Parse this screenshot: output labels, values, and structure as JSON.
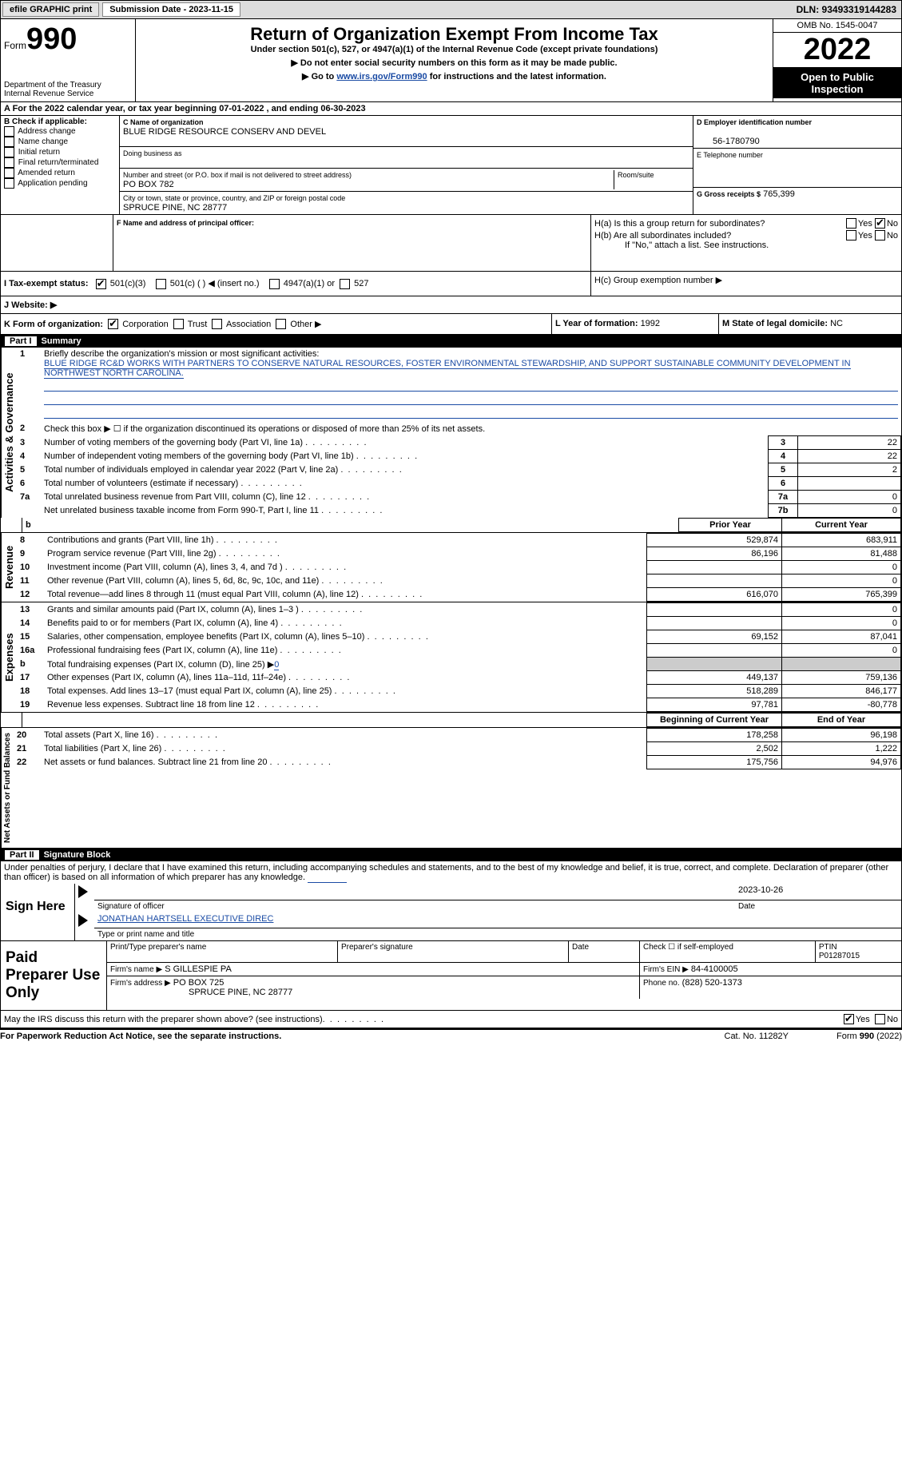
{
  "topbar": {
    "efile": "efile GRAPHIC print",
    "submission": "Submission Date - 2023-11-15",
    "dln": "DLN: 93493319144283"
  },
  "header": {
    "form_prefix": "Form",
    "form_no": "990",
    "dept1": "Department of the Treasury",
    "dept2": "Internal Revenue Service",
    "title": "Return of Organization Exempt From Income Tax",
    "sub1": "Under section 501(c), 527, or 4947(a)(1) of the Internal Revenue Code (except private foundations)",
    "sub2": "▶ Do not enter social security numbers on this form as it may be made public.",
    "sub3_pre": "▶ Go to ",
    "sub3_link": "www.irs.gov/Form990",
    "sub3_post": " for instructions and the latest information.",
    "omb": "OMB No. 1545-0047",
    "year": "2022",
    "open": "Open to Public Inspection"
  },
  "A": {
    "line": "A For the 2022 calendar year, or tax year beginning 07-01-2022    , and ending 06-30-2023"
  },
  "B": {
    "title": "B Check if applicable:",
    "opts": [
      "Address change",
      "Name change",
      "Initial return",
      "Final return/terminated",
      "Amended return",
      "Application pending"
    ]
  },
  "C": {
    "label": "C Name of organization",
    "name": "BLUE RIDGE RESOURCE CONSERV AND DEVEL",
    "dba_label": "Doing business as",
    "addr_label": "Number and street (or P.O. box if mail is not delivered to street address)",
    "room_label": "Room/suite",
    "addr": "PO BOX 782",
    "city_label": "City or town, state or province, country, and ZIP or foreign postal code",
    "city": "SPRUCE PINE, NC  28777"
  },
  "D": {
    "label": "D Employer identification number",
    "val": "56-1780790"
  },
  "E": {
    "label": "E Telephone number"
  },
  "G": {
    "label": "G Gross receipts $",
    "val": "765,399"
  },
  "F": {
    "label": "F Name and address of principal officer:"
  },
  "H": {
    "a": "H(a)  Is this a group return for subordinates?",
    "b": "H(b)  Are all subordinates included?",
    "b_note": "If \"No,\" attach a list. See instructions.",
    "c": "H(c)  Group exemption number ▶",
    "yes": "Yes",
    "no": "No"
  },
  "I": {
    "label": "I  Tax-exempt status:",
    "o1": "501(c)(3)",
    "o2": "501(c) (  ) ◀ (insert no.)",
    "o3": "4947(a)(1) or",
    "o4": "527"
  },
  "J": {
    "label": "J  Website: ▶"
  },
  "K": {
    "label": "K Form of organization:",
    "o1": "Corporation",
    "o2": "Trust",
    "o3": "Association",
    "o4": "Other ▶"
  },
  "L": {
    "label": "L Year of formation: ",
    "val": "1992"
  },
  "M": {
    "label": "M State of legal domicile: ",
    "val": "NC"
  },
  "part1": {
    "title": "Part I",
    "heading": "Summary",
    "l1_label": "Briefly describe the organization's mission or most significant activities:",
    "l1_text": "BLUE RIDGE RC&D WORKS WITH PARTNERS TO CONSERVE NATURAL RESOURCES, FOSTER ENVIRONMENTAL STEWARDSHIP, AND SUPPORT SUSTAINABLE COMMUNITY DEVELOPMENT IN NORTHWEST NORTH CAROLINA.",
    "l2": "Check this box ▶ ☐ if the organization discontinued its operations or disposed of more than 25% of its net assets.",
    "rows": [
      {
        "n": "3",
        "t": "Number of voting members of the governing body (Part VI, line 1a)",
        "b": "3",
        "v": "22"
      },
      {
        "n": "4",
        "t": "Number of independent voting members of the governing body (Part VI, line 1b)",
        "b": "4",
        "v": "22"
      },
      {
        "n": "5",
        "t": "Total number of individuals employed in calendar year 2022 (Part V, line 2a)",
        "b": "5",
        "v": "2"
      },
      {
        "n": "6",
        "t": "Total number of volunteers (estimate if necessary)",
        "b": "6",
        "v": ""
      },
      {
        "n": "7a",
        "t": "Total unrelated business revenue from Part VIII, column (C), line 12",
        "b": "7a",
        "v": "0"
      },
      {
        "n": "",
        "t": "Net unrelated business taxable income from Form 990-T, Part I, line 11",
        "b": "7b",
        "v": "0"
      }
    ],
    "prior": "Prior Year",
    "current": "Current Year",
    "rev": [
      {
        "n": "8",
        "t": "Contributions and grants (Part VIII, line 1h)",
        "p": "529,874",
        "c": "683,911"
      },
      {
        "n": "9",
        "t": "Program service revenue (Part VIII, line 2g)",
        "p": "86,196",
        "c": "81,488"
      },
      {
        "n": "10",
        "t": "Investment income (Part VIII, column (A), lines 3, 4, and 7d )",
        "p": "",
        "c": "0"
      },
      {
        "n": "11",
        "t": "Other revenue (Part VIII, column (A), lines 5, 6d, 8c, 9c, 10c, and 11e)",
        "p": "",
        "c": "0"
      },
      {
        "n": "12",
        "t": "Total revenue—add lines 8 through 11 (must equal Part VIII, column (A), line 12)",
        "p": "616,070",
        "c": "765,399"
      }
    ],
    "exp": [
      {
        "n": "13",
        "t": "Grants and similar amounts paid (Part IX, column (A), lines 1–3 )",
        "p": "",
        "c": "0"
      },
      {
        "n": "14",
        "t": "Benefits paid to or for members (Part IX, column (A), line 4)",
        "p": "",
        "c": "0"
      },
      {
        "n": "15",
        "t": "Salaries, other compensation, employee benefits (Part IX, column (A), lines 5–10)",
        "p": "69,152",
        "c": "87,041"
      },
      {
        "n": "16a",
        "t": "Professional fundraising fees (Part IX, column (A), line 11e)",
        "p": "",
        "c": "0"
      },
      {
        "n": "b",
        "t": "Total fundraising expenses (Part IX, column (D), line 25) ▶",
        "p": "grey",
        "c": "grey",
        "inline": "0"
      },
      {
        "n": "17",
        "t": "Other expenses (Part IX, column (A), lines 11a–11d, 11f–24e)",
        "p": "449,137",
        "c": "759,136"
      },
      {
        "n": "18",
        "t": "Total expenses. Add lines 13–17 (must equal Part IX, column (A), line 25)",
        "p": "518,289",
        "c": "846,177"
      },
      {
        "n": "19",
        "t": "Revenue less expenses. Subtract line 18 from line 12",
        "p": "97,781",
        "c": "-80,778"
      }
    ],
    "begin": "Beginning of Current Year",
    "end": "End of Year",
    "net": [
      {
        "n": "20",
        "t": "Total assets (Part X, line 16)",
        "p": "178,258",
        "c": "96,198"
      },
      {
        "n": "21",
        "t": "Total liabilities (Part X, line 26)",
        "p": "2,502",
        "c": "1,222"
      },
      {
        "n": "22",
        "t": "Net assets or fund balances. Subtract line 21 from line 20",
        "p": "175,756",
        "c": "94,976"
      }
    ],
    "side_act": "Activities & Governance",
    "side_rev": "Revenue",
    "side_exp": "Expenses",
    "side_net": "Net Assets or Fund Balances"
  },
  "part2": {
    "title": "Part II",
    "heading": "Signature Block",
    "decl": "Under penalties of perjury, I declare that I have examined this return, including accompanying schedules and statements, and to the best of my knowledge and belief, it is true, correct, and complete. Declaration of preparer (other than officer) is based on all information of which preparer has any knowledge.",
    "sign_here": "Sign Here",
    "sig_officer": "Signature of officer",
    "sig_date_val": "2023-10-26",
    "sig_date": "Date",
    "printed_name": "JONATHAN HARTSELL  EXECUTIVE DIREC",
    "printed_label": "Type or print name and title",
    "paid": "Paid Preparer Use Only",
    "pp_name_label": "Print/Type preparer's name",
    "pp_sig_label": "Preparer's signature",
    "pp_date": "Date",
    "pp_check": "Check ☐ if self-employed",
    "ptin_label": "PTIN",
    "ptin": "P01287015",
    "firm_name_label": "Firm's name    ▶",
    "firm_name": "S GILLESPIE PA",
    "firm_ein_label": "Firm's EIN ▶",
    "firm_ein": "84-4100005",
    "firm_addr_label": "Firm's address ▶",
    "firm_addr": "PO BOX 725",
    "firm_city": "SPRUCE PINE, NC  28777",
    "phone_label": "Phone no.",
    "phone": "(828) 520-1373",
    "may": "May the IRS discuss this return with the preparer shown above? (see instructions)",
    "yes": "Yes",
    "no": "No"
  },
  "footer": {
    "pra": "For Paperwork Reduction Act Notice, see the separate instructions.",
    "cat": "Cat. No. 11282Y",
    "form": "Form 990 (2022)"
  }
}
